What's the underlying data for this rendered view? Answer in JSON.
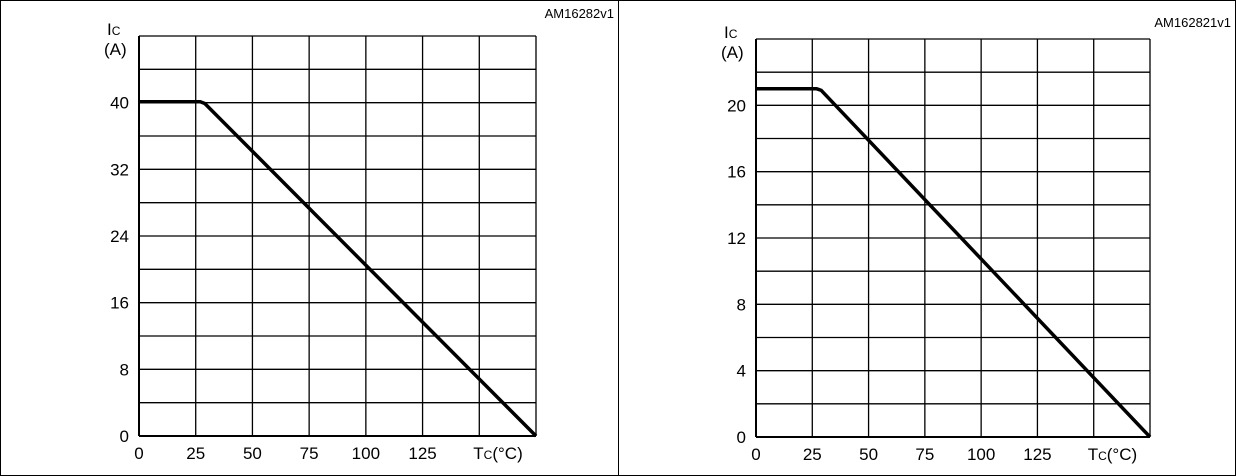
{
  "chart_data": [
    {
      "type": "line",
      "id_label": "AM16282v1",
      "ylabel_main": "I",
      "ylabel_sub": "C",
      "ylabel_unit": "(A)",
      "xlabel_main": "T",
      "xlabel_sub": "C",
      "xlabel_unit": "(°C)",
      "xlim": [
        0,
        175
      ],
      "ylim": [
        0,
        48
      ],
      "x_ticks": [
        0,
        25,
        50,
        75,
        100,
        125
      ],
      "x_tick_labels": [
        "0",
        "25",
        "50",
        "75",
        "100",
        "125"
      ],
      "y_ticks": [
        0,
        8,
        16,
        24,
        32,
        40
      ],
      "y_tick_labels": [
        "0",
        "8",
        "16",
        "24",
        "32",
        "40"
      ],
      "x_grid": [
        0,
        25,
        50,
        75,
        100,
        125,
        150,
        175
      ],
      "y_grid": [
        0,
        4,
        8,
        12,
        16,
        20,
        24,
        28,
        32,
        36,
        40,
        44,
        48
      ],
      "grid": true,
      "series": [
        {
          "x": [
            0,
            27,
            29,
            175
          ],
          "y": [
            40.1,
            40.1,
            39.9,
            0
          ]
        }
      ]
    },
    {
      "type": "line",
      "id_label": "AM162821v1",
      "ylabel_main": "I",
      "ylabel_sub": "C",
      "ylabel_unit": "(A)",
      "xlabel_main": "T",
      "xlabel_sub": "C",
      "xlabel_unit": "(°C)",
      "xlim": [
        0,
        175
      ],
      "ylim": [
        0,
        24
      ],
      "x_ticks": [
        0,
        25,
        50,
        75,
        100,
        125
      ],
      "x_tick_labels": [
        "0",
        "25",
        "50",
        "75",
        "100",
        "125"
      ],
      "y_ticks": [
        0,
        4,
        8,
        12,
        16,
        20
      ],
      "y_tick_labels": [
        "0",
        "4",
        "8",
        "12",
        "16",
        "20"
      ],
      "x_grid": [
        0,
        25,
        50,
        75,
        100,
        125,
        150,
        175
      ],
      "y_grid": [
        0,
        2,
        4,
        6,
        8,
        10,
        12,
        14,
        16,
        18,
        20,
        22,
        24
      ],
      "grid": true,
      "series": [
        {
          "x": [
            0,
            27,
            29,
            175
          ],
          "y": [
            21.0,
            21.0,
            20.9,
            0
          ]
        }
      ]
    }
  ]
}
